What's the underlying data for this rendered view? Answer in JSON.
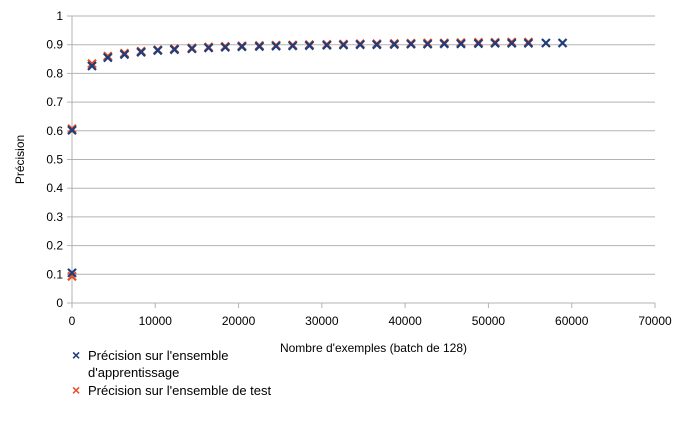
{
  "chart_data": {
    "type": "scatter",
    "title": "",
    "xlabel": "Nombre d'exemples (batch de 128)",
    "ylabel": "Précision",
    "xlim": [
      0,
      70000
    ],
    "ylim": [
      0,
      1
    ],
    "xticks": [
      "0",
      "10000",
      "20000",
      "30000",
      "40000",
      "50000",
      "60000",
      "70000"
    ],
    "yticks": [
      "0",
      "0.1",
      "0.2",
      "0.3",
      "0.4",
      "0.5",
      "0.6",
      "0.7",
      "0.8",
      "0.9",
      "1"
    ],
    "grid": "horizontal",
    "legend_position": "bottom-left",
    "marker": "×",
    "series": [
      {
        "name": "Précision sur l'ensemble d'apprentissage",
        "color": "#1f3d7a",
        "x": [
          0,
          0,
          2400,
          4300,
          6300,
          8300,
          10300,
          12300,
          14400,
          16400,
          18400,
          20400,
          22500,
          24500,
          26500,
          28500,
          30600,
          32600,
          34600,
          36600,
          38700,
          40700,
          42700,
          44700,
          46700,
          48800,
          50800,
          52800,
          54800,
          56900,
          58900
        ],
        "y": [
          0.105,
          0.602,
          0.826,
          0.855,
          0.866,
          0.874,
          0.88,
          0.883,
          0.886,
          0.889,
          0.891,
          0.893,
          0.894,
          0.895,
          0.896,
          0.897,
          0.898,
          0.899,
          0.9,
          0.9,
          0.901,
          0.902,
          0.902,
          0.903,
          0.903,
          0.904,
          0.905,
          0.905,
          0.905,
          0.906,
          0.906
        ]
      },
      {
        "name": "Précision sur l'ensemble de test",
        "color": "#e8502a",
        "x": [
          0,
          0,
          2400,
          4300,
          6300,
          8300,
          10300,
          12300,
          14400,
          16400,
          18400,
          20400,
          22500,
          24500,
          26500,
          28500,
          30600,
          32600,
          34600,
          36600,
          38700,
          40700,
          42700,
          44700,
          46700,
          48800,
          50800,
          52800,
          54800
        ],
        "y": [
          0.093,
          0.607,
          0.834,
          0.86,
          0.87,
          0.877,
          0.882,
          0.886,
          0.889,
          0.892,
          0.894,
          0.896,
          0.897,
          0.898,
          0.899,
          0.9,
          0.901,
          0.902,
          0.903,
          0.903,
          0.904,
          0.905,
          0.906,
          0.906,
          0.907,
          0.908,
          0.908,
          0.909,
          0.909
        ]
      }
    ]
  }
}
